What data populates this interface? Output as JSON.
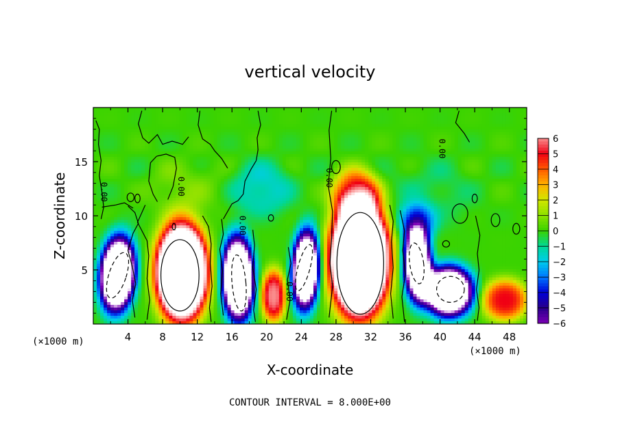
{
  "chart_data": {
    "type": "heatmap",
    "title": "vertical velocity",
    "xlabel": "X-coordinate",
    "ylabel": "Z-coordinate",
    "x_unit": "(×1000 m)",
    "x_unit_right": "(×1000 m)",
    "xlim": [
      0,
      50
    ],
    "ylim": [
      0,
      20
    ],
    "x_ticks": [
      4,
      8,
      12,
      16,
      20,
      24,
      28,
      32,
      36,
      40,
      44,
      48
    ],
    "y_ticks": [
      5,
      10,
      15
    ],
    "footer": "CONTOUR INTERVAL = 8.000E+00",
    "contour_label": "0.00",
    "colorbar": {
      "min": -6,
      "max": 6,
      "ticks": [
        "6",
        "5",
        "4",
        "3",
        "2",
        "1",
        "0",
        "−1",
        "−2",
        "−3",
        "−4",
        "−5",
        "−6"
      ]
    },
    "cells": [
      {
        "x": 2.8,
        "z": 4.6,
        "rx": 1.9,
        "rz": 3.4,
        "w": -12,
        "tilt": 18
      },
      {
        "x": 10.2,
        "z": 4.8,
        "rx": 2.9,
        "rz": 4.4,
        "w": 14,
        "tilt": 0
      },
      {
        "x": 16.7,
        "z": 4.2,
        "rx": 1.8,
        "rz": 3.8,
        "w": -12,
        "tilt": -6
      },
      {
        "x": 20.8,
        "z": 2.6,
        "rx": 1.4,
        "rz": 2.4,
        "w": 6,
        "tilt": 0
      },
      {
        "x": 24.5,
        "z": 5.0,
        "rx": 1.5,
        "rz": 3.6,
        "w": -11,
        "tilt": 15
      },
      {
        "x": 30.7,
        "z": 6.0,
        "rx": 3.3,
        "rz": 5.2,
        "w": 15,
        "tilt": 0
      },
      {
        "x": 30.3,
        "z": 12.0,
        "rx": 2.8,
        "rz": 2.3,
        "w": 4,
        "tilt": 0
      },
      {
        "x": 37.4,
        "z": 5.5,
        "rx": 1.6,
        "rz": 3.4,
        "w": -10,
        "tilt": -8
      },
      {
        "x": 41.0,
        "z": 3.0,
        "rx": 2.8,
        "rz": 2.3,
        "w": -11,
        "tilt": 0
      },
      {
        "x": 37.3,
        "z": 9.4,
        "rx": 2.2,
        "rz": 1.8,
        "w": -3,
        "tilt": 0
      },
      {
        "x": 47.5,
        "z": 2.2,
        "rx": 2.6,
        "rz": 1.9,
        "w": 5,
        "tilt": 0
      },
      {
        "x": 19.5,
        "z": 12.5,
        "rx": 3.5,
        "rz": 2.5,
        "w": -1.6,
        "tilt": 0
      },
      {
        "x": 39.0,
        "z": 12.0,
        "rx": 5.0,
        "rz": 3.0,
        "w": -0.6,
        "tilt": 0
      },
      {
        "x": 10.5,
        "z": 12.5,
        "rx": 4.0,
        "rz": 2.5,
        "w": 0.7,
        "tilt": 0
      }
    ],
    "contour_lines": [
      [
        [
          0.3,
          18.8
        ],
        [
          0.7,
          18.0
        ],
        [
          0.6,
          16.6
        ],
        [
          0.9,
          15.1
        ],
        [
          0.7,
          13.7
        ],
        [
          1.0,
          12.2
        ],
        [
          1.2,
          10.8
        ],
        [
          0.9,
          9.7
        ]
      ],
      [
        [
          4.0,
          10.9
        ],
        [
          4.8,
          10.3
        ],
        [
          5.2,
          9.3
        ],
        [
          4.6,
          8.4
        ],
        [
          4.0,
          6.8
        ],
        [
          4.5,
          5.3
        ],
        [
          4.9,
          3.7
        ],
        [
          4.5,
          2.2
        ],
        [
          4.8,
          0.6
        ]
      ],
      [
        [
          6.0,
          11.0
        ],
        [
          5.1,
          9.4
        ],
        [
          6.2,
          7.7
        ],
        [
          6.4,
          6.3
        ],
        [
          6.2,
          4.2
        ],
        [
          6.5,
          2.2
        ],
        [
          6.2,
          0.4
        ]
      ],
      [
        [
          12.6,
          10.0
        ],
        [
          13.3,
          9.0
        ],
        [
          13.6,
          7.4
        ],
        [
          13.5,
          5.6
        ],
        [
          13.7,
          3.5
        ],
        [
          13.4,
          1.5
        ],
        [
          13.6,
          0.2
        ]
      ],
      [
        [
          14.8,
          9.7
        ],
        [
          15.0,
          8.3
        ],
        [
          14.6,
          6.9
        ],
        [
          14.9,
          4.9
        ],
        [
          14.7,
          2.8
        ],
        [
          15.0,
          0.8
        ]
      ],
      [
        [
          18.4,
          8.7
        ],
        [
          18.6,
          7.3
        ],
        [
          18.4,
          5.2
        ],
        [
          18.8,
          3.2
        ],
        [
          18.5,
          1.3
        ],
        [
          18.7,
          0.2
        ]
      ],
      [
        [
          22.5,
          7.1
        ],
        [
          22.8,
          5.6
        ],
        [
          22.4,
          4.1
        ],
        [
          22.7,
          2.2
        ],
        [
          22.3,
          0.4
        ]
      ],
      [
        [
          27.5,
          19.7
        ],
        [
          27.2,
          17.9
        ],
        [
          27.4,
          15.3
        ],
        [
          27.1,
          12.8
        ],
        [
          27.6,
          10.4
        ],
        [
          27.5,
          8.0
        ],
        [
          27.3,
          5.6
        ],
        [
          27.6,
          3.5
        ],
        [
          27.2,
          0.6
        ]
      ],
      [
        [
          34.2,
          11.0
        ],
        [
          34.6,
          9.5
        ],
        [
          34.4,
          7.6
        ],
        [
          34.6,
          5.2
        ],
        [
          34.3,
          2.8
        ],
        [
          34.6,
          0.5
        ]
      ],
      [
        [
          35.4,
          10.5
        ],
        [
          35.9,
          8.6
        ],
        [
          35.7,
          6.8
        ],
        [
          36.0,
          4.6
        ],
        [
          35.6,
          2.5
        ],
        [
          35.9,
          0.2
        ]
      ],
      [
        [
          44.1,
          10.0
        ],
        [
          44.6,
          8.2
        ],
        [
          44.3,
          6.5
        ],
        [
          44.5,
          5.0
        ],
        [
          44.2,
          3.2
        ],
        [
          44.5,
          1.5
        ],
        [
          44.3,
          0.3
        ]
      ],
      [
        [
          5.6,
          19.7
        ],
        [
          5.2,
          18.5
        ],
        [
          5.7,
          17.2
        ],
        [
          6.4,
          16.7
        ],
        [
          7.4,
          17.5
        ],
        [
          8.0,
          16.6
        ],
        [
          9.1,
          16.9
        ],
        [
          10.3,
          16.6
        ],
        [
          11.0,
          17.3
        ]
      ],
      [
        [
          12.3,
          19.7
        ],
        [
          12.1,
          18.4
        ],
        [
          12.6,
          17.1
        ],
        [
          13.5,
          16.6
        ],
        [
          14.0,
          16.0
        ],
        [
          14.8,
          15.3
        ],
        [
          15.5,
          14.4
        ]
      ],
      [
        [
          19.0,
          19.7
        ],
        [
          19.3,
          18.4
        ],
        [
          18.9,
          17.2
        ],
        [
          19.0,
          16.1
        ],
        [
          18.8,
          15.1
        ]
      ],
      [
        [
          1.0,
          10.8
        ],
        [
          2.6,
          11.0
        ],
        [
          3.6,
          11.2
        ],
        [
          4.6,
          10.7
        ]
      ],
      [
        [
          18.8,
          15.1
        ],
        [
          18.2,
          14.3
        ],
        [
          17.5,
          13.2
        ],
        [
          17.3,
          12.0
        ],
        [
          16.7,
          11.4
        ],
        [
          16.0,
          11.1
        ],
        [
          15.0,
          9.7
        ]
      ],
      [
        [
          42.2,
          19.7
        ],
        [
          41.8,
          18.6
        ],
        [
          42.8,
          17.6
        ],
        [
          43.4,
          16.8
        ]
      ],
      [
        [
          7.3,
          15.5
        ],
        [
          6.6,
          14.9
        ],
        [
          6.4,
          13.2
        ],
        [
          6.9,
          12.0
        ],
        [
          7.4,
          11.3
        ]
      ],
      [
        [
          8.6,
          11.5
        ],
        [
          9.2,
          12.7
        ],
        [
          9.6,
          14.4
        ],
        [
          9.4,
          15.4
        ],
        [
          8.4,
          15.7
        ],
        [
          7.3,
          15.5
        ]
      ]
    ],
    "closed_contours": [
      {
        "x": 10.0,
        "z": 4.5,
        "rx": 2.2,
        "rz": 3.3,
        "dashed": false
      },
      {
        "x": 30.8,
        "z": 5.6,
        "rx": 2.7,
        "rz": 4.7,
        "dashed": false
      },
      {
        "x": 2.8,
        "z": 4.5,
        "rx": 1.0,
        "rz": 2.2,
        "dashed": true,
        "tilt": 18
      },
      {
        "x": 16.8,
        "z": 3.8,
        "rx": 0.8,
        "rz": 2.6,
        "dashed": true,
        "tilt": -5
      },
      {
        "x": 24.3,
        "z": 5.2,
        "rx": 0.7,
        "rz": 2.2,
        "dashed": true,
        "tilt": 15
      },
      {
        "x": 37.3,
        "z": 5.6,
        "rx": 0.8,
        "rz": 1.9,
        "dashed": true,
        "tilt": -8
      },
      {
        "x": 41.2,
        "z": 3.2,
        "rx": 1.6,
        "rz": 1.2,
        "dashed": true,
        "tilt": 0
      },
      {
        "x": 28.0,
        "z": 14.5,
        "rx": 0.5,
        "rz": 0.6,
        "dashed": false
      },
      {
        "x": 42.3,
        "z": 10.2,
        "rx": 0.9,
        "rz": 0.9,
        "dashed": false
      },
      {
        "x": 44.0,
        "z": 11.6,
        "rx": 0.3,
        "rz": 0.4,
        "dashed": false
      },
      {
        "x": 46.4,
        "z": 9.6,
        "rx": 0.5,
        "rz": 0.6,
        "dashed": false
      },
      {
        "x": 20.5,
        "z": 9.8,
        "rx": 0.3,
        "rz": 0.3,
        "dashed": false
      },
      {
        "x": 48.8,
        "z": 8.8,
        "rx": 0.4,
        "rz": 0.5,
        "dashed": false
      },
      {
        "x": 4.3,
        "z": 11.7,
        "rx": 0.4,
        "rz": 0.4,
        "dashed": false
      },
      {
        "x": 5.1,
        "z": 11.6,
        "rx": 0.3,
        "rz": 0.4,
        "dashed": false
      },
      {
        "x": 40.7,
        "z": 7.4,
        "rx": 0.4,
        "rz": 0.3,
        "dashed": false
      },
      {
        "x": 9.3,
        "z": 9.0,
        "rx": 0.2,
        "rz": 0.3,
        "dashed": false
      }
    ],
    "contour_label_positions": [
      {
        "x": 0.9,
        "z": 12.2
      },
      {
        "x": 9.8,
        "z": 12.7
      },
      {
        "x": 16.9,
        "z": 9.1
      },
      {
        "x": 22.3,
        "z": 3.0
      },
      {
        "x": 26.9,
        "z": 13.5
      },
      {
        "x": 39.9,
        "z": 16.2
      }
    ]
  }
}
